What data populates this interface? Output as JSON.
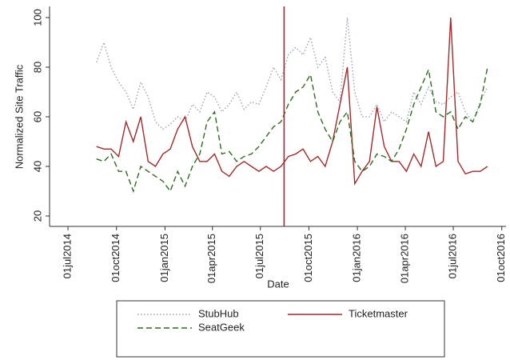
{
  "chart_data": {
    "type": "line",
    "y_label": "Normalized Site Traffic",
    "x_label": "Date",
    "x": [
      "2014-08-24",
      "2014-09-07",
      "2014-09-21",
      "2014-10-05",
      "2014-10-19",
      "2014-11-02",
      "2014-11-16",
      "2014-11-30",
      "2014-12-14",
      "2014-12-28",
      "2015-01-11",
      "2015-01-25",
      "2015-02-08",
      "2015-02-22",
      "2015-03-08",
      "2015-03-22",
      "2015-04-05",
      "2015-04-19",
      "2015-05-03",
      "2015-05-17",
      "2015-05-31",
      "2015-06-14",
      "2015-06-28",
      "2015-07-12",
      "2015-07-26",
      "2015-08-09",
      "2015-08-23",
      "2015-09-06",
      "2015-09-20",
      "2015-10-04",
      "2015-10-18",
      "2015-11-01",
      "2015-11-15",
      "2015-11-29",
      "2015-12-13",
      "2015-12-27",
      "2016-01-10",
      "2016-01-24",
      "2016-02-07",
      "2016-02-21",
      "2016-03-06",
      "2016-03-20",
      "2016-04-03",
      "2016-04-17",
      "2016-05-01",
      "2016-05-15",
      "2016-05-29",
      "2016-06-12",
      "2016-06-26",
      "2016-07-10",
      "2016-07-24",
      "2016-08-07",
      "2016-08-21",
      "2016-09-04"
    ],
    "series": [
      {
        "name": "StubHub",
        "color": "#9aa3b8",
        "dash": "dot",
        "values": [
          82,
          90,
          80,
          74,
          70,
          63,
          74,
          68,
          58,
          55,
          57,
          60,
          58,
          65,
          62,
          70,
          68,
          62,
          65,
          70,
          63,
          66,
          65,
          72,
          80,
          75,
          85,
          88,
          85,
          92,
          80,
          84,
          70,
          66,
          100,
          70,
          60,
          60,
          65,
          58,
          62,
          60,
          58,
          70,
          65,
          72,
          66,
          65,
          68,
          70,
          62,
          58,
          66,
          72
        ]
      },
      {
        "name": "Ticketmaster",
        "color": "#a32a2a",
        "dash": "solid",
        "values": [
          48,
          47,
          47,
          44,
          58,
          50,
          60,
          42,
          40,
          45,
          47,
          55,
          60,
          48,
          42,
          42,
          45,
          38,
          36,
          40,
          42,
          40,
          38,
          40,
          38,
          40,
          44,
          45,
          47,
          42,
          44,
          40,
          50,
          65,
          80,
          33,
          38,
          42,
          64,
          48,
          42,
          42,
          38,
          45,
          40,
          54,
          40,
          42,
          100,
          42,
          37,
          38,
          38,
          40
        ]
      },
      {
        "name": "SeatGeek",
        "color": "#2f6b20",
        "dash": "dash",
        "values": [
          43,
          42,
          45,
          38,
          38,
          30,
          40,
          38,
          36,
          34,
          30,
          38,
          32,
          40,
          45,
          58,
          62,
          45,
          46,
          42,
          44,
          45,
          48,
          52,
          56,
          58,
          65,
          70,
          72,
          77,
          62,
          55,
          50,
          58,
          62,
          42,
          38,
          40,
          45,
          44,
          42,
          47,
          55,
          65,
          72,
          79,
          62,
          60,
          62,
          55,
          60,
          58,
          65,
          80
        ]
      }
    ],
    "vline": "2015-08-15",
    "xlim": [
      "2014-05-27",
      "2016-10-09"
    ],
    "xticks": [
      {
        "value": "2014-07-01",
        "label": "01jul2014"
      },
      {
        "value": "2014-10-01",
        "label": "01oct2014"
      },
      {
        "value": "2015-01-01",
        "label": "01jan2015"
      },
      {
        "value": "2015-04-01",
        "label": "01apr2015"
      },
      {
        "value": "2015-07-01",
        "label": "01jul2015"
      },
      {
        "value": "2015-10-01",
        "label": "01oct2015"
      },
      {
        "value": "2016-01-01",
        "label": "01jan2016"
      },
      {
        "value": "2016-04-01",
        "label": "01apr2016"
      },
      {
        "value": "2016-07-01",
        "label": "01jul2016"
      },
      {
        "value": "2016-10-01",
        "label": "01oct2016"
      }
    ],
    "ylim": [
      15.8,
      104.5
    ],
    "yticks": [
      20,
      40,
      60,
      80,
      100
    ],
    "grid": false
  }
}
